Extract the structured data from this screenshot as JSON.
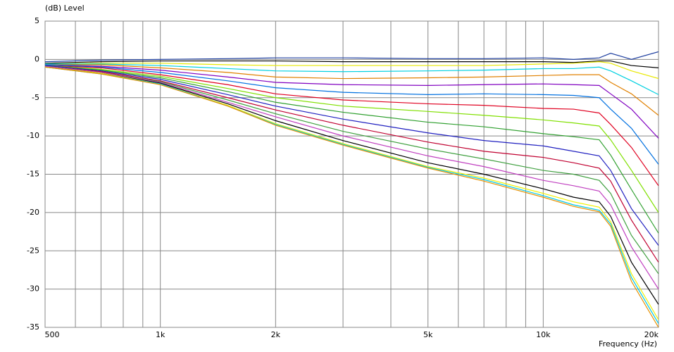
{
  "chart_data": {
    "type": "line",
    "y_label": "(dB)  Level",
    "x_label": "Frequency  (Hz)",
    "log_x": true,
    "grid": true,
    "xlim": [
      500,
      20000
    ],
    "ylim": [
      -35,
      5
    ],
    "yticks": [
      5,
      0,
      -5,
      -10,
      -15,
      -20,
      -25,
      -30,
      -35
    ],
    "xticks": [
      500,
      {
        "value": 600,
        "label": null
      },
      {
        "value": 700,
        "label": null
      },
      {
        "value": 800,
        "label": null
      },
      {
        "value": 900,
        "label": null
      },
      {
        "value": 1000,
        "label": "1k"
      },
      {
        "value": 2000,
        "label": "2k"
      },
      {
        "value": 3000,
        "label": null
      },
      {
        "value": 4000,
        "label": null
      },
      {
        "value": 5000,
        "label": "5k"
      },
      {
        "value": 6000,
        "label": null
      },
      {
        "value": 7000,
        "label": null
      },
      {
        "value": 8000,
        "label": null
      },
      {
        "value": 9000,
        "label": null
      },
      {
        "value": 10000,
        "label": "10k"
      },
      {
        "value": 20000,
        "label": "20k"
      }
    ],
    "x": [
      500,
      700,
      1000,
      1500,
      2000,
      3000,
      5000,
      7000,
      10000,
      12000,
      14000,
      15000,
      17000,
      20000
    ],
    "series": [
      {
        "color": "#2040a0",
        "values": [
          -0.3,
          -0.1,
          0,
          0.1,
          0.2,
          0.2,
          0.1,
          0.1,
          0.2,
          0,
          0.2,
          0.8,
          0,
          1.0
        ]
      },
      {
        "color": "#000000",
        "values": [
          -0.5,
          -0.3,
          -0.2,
          -0.2,
          -0.2,
          -0.3,
          -0.3,
          -0.3,
          -0.3,
          -0.4,
          -0.2,
          -0.2,
          -0.8,
          -1.1
        ]
      },
      {
        "color": "#e8e800",
        "values": [
          -0.6,
          -0.5,
          -0.5,
          -0.7,
          -0.8,
          -0.8,
          -0.8,
          -0.8,
          -0.6,
          -0.5,
          -0.3,
          -0.5,
          -1.5,
          -2.5
        ]
      },
      {
        "color": "#00d0e0",
        "values": [
          -0.6,
          -0.6,
          -0.8,
          -1.2,
          -1.5,
          -1.6,
          -1.5,
          -1.4,
          -1.2,
          -1.2,
          -1.0,
          -1.5,
          -2.8,
          -4.6
        ]
      },
      {
        "color": "#e08000",
        "values": [
          -0.7,
          -0.7,
          -1.1,
          -1.7,
          -2.3,
          -2.5,
          -2.4,
          -2.3,
          -2.1,
          -2.0,
          -2.0,
          -3.0,
          -4.5,
          -7.3
        ]
      },
      {
        "color": "#8000c0",
        "values": [
          -0.7,
          -0.9,
          -1.4,
          -2.3,
          -3.0,
          -3.3,
          -3.4,
          -3.3,
          -3.2,
          -3.3,
          -3.4,
          -4.5,
          -6.5,
          -10.3
        ]
      },
      {
        "color": "#0070e0",
        "values": [
          -0.7,
          -1.0,
          -1.7,
          -2.8,
          -3.7,
          -4.3,
          -4.6,
          -4.5,
          -4.6,
          -4.7,
          -5.0,
          -6.5,
          -9,
          -13.7
        ]
      },
      {
        "color": "#e00020",
        "values": [
          -0.8,
          -1.1,
          -2.0,
          -3.3,
          -4.5,
          -5.3,
          -5.8,
          -6.0,
          -6.4,
          -6.5,
          -7,
          -8.5,
          -11.5,
          -16.5
        ]
      },
      {
        "color": "#80e000",
        "values": [
          -0.8,
          -1.3,
          -2.2,
          -3.8,
          -5.0,
          -6.1,
          -6.8,
          -7.3,
          -7.9,
          -8.3,
          -8.7,
          -10.5,
          -14.5,
          -20
        ]
      },
      {
        "color": "#30a030",
        "values": [
          -0.8,
          -1.4,
          -2.4,
          -4.2,
          -5.6,
          -6.9,
          -8.2,
          -8.8,
          -9.7,
          -10.1,
          -10.5,
          -12.5,
          -17,
          -22.7
        ]
      },
      {
        "color": "#2020c0",
        "values": [
          -0.8,
          -1.5,
          -2.6,
          -4.6,
          -6.1,
          -7.8,
          -9.6,
          -10.6,
          -11.3,
          -12,
          -12.6,
          -14.5,
          -19.5,
          -24.3
        ]
      },
      {
        "color": "#c00030",
        "values": [
          -0.9,
          -1.6,
          -2.8,
          -5,
          -6.6,
          -8.6,
          -10.8,
          -12,
          -12.8,
          -13.5,
          -14.2,
          -15.9,
          -21,
          -26.5
        ]
      },
      {
        "color": "#40a040",
        "values": [
          -0.9,
          -1.7,
          -2.9,
          -5.3,
          -7.1,
          -9.4,
          -11.7,
          -13,
          -14.5,
          -15,
          -15.8,
          -17.5,
          -23,
          -28
        ]
      },
      {
        "color": "#c040c0",
        "values": [
          -0.9,
          -1.7,
          -3.0,
          -5.6,
          -7.5,
          -10.0,
          -12.6,
          -14,
          -15.8,
          -16.5,
          -17.2,
          -19,
          -24.5,
          -30
        ]
      },
      {
        "color": "#000000",
        "values": [
          -1,
          -1.8,
          -3.1,
          -5.8,
          -8,
          -10.6,
          -13.5,
          -15,
          -16.9,
          -18,
          -18.6,
          -20.5,
          -26.5,
          -32
        ]
      },
      {
        "color": "#f0f000",
        "values": [
          -1,
          -1.8,
          -3.2,
          -6,
          -8.4,
          -11,
          -14,
          -15.5,
          -17.5,
          -18.6,
          -19.3,
          -21.2,
          -28,
          -34
        ]
      },
      {
        "color": "#00c8e8",
        "values": [
          -1,
          -1.9,
          -3.2,
          -6.1,
          -8.5,
          -11.1,
          -14.1,
          -15.7,
          -17.8,
          -19,
          -19.7,
          -21.5,
          -28.5,
          -34.5
        ]
      },
      {
        "color": "#e89000",
        "values": [
          -1,
          -1.9,
          -3.3,
          -6.1,
          -8.6,
          -11.2,
          -14.2,
          -15.9,
          -18,
          -19.2,
          -19.9,
          -21.8,
          -29,
          -35
        ]
      }
    ]
  }
}
